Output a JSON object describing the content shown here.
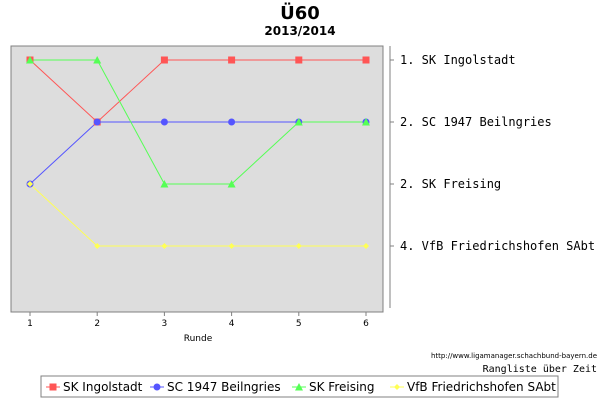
{
  "chart_data": {
    "type": "line",
    "title": "Ü60",
    "subtitle": "2013/2014",
    "xlabel": "Runde",
    "x": [
      1,
      2,
      3,
      4,
      5,
      6
    ],
    "ylim": [
      1,
      5
    ],
    "y_inverted": true,
    "grid": false,
    "legend_position": "bottom",
    "right_axis_labels": [
      "1. SK Ingolstadt",
      "2. SC 1947 Beilngries",
      "2. SK Freising",
      "4. VfB Friedrichshofen SAbt"
    ],
    "right_axis_caption": "Rangliste über Zeit",
    "source_text": "http://www.ligamanager.schachbund-bayern.de",
    "series": [
      {
        "name": "SK Ingolstadt",
        "color": "#ff5555",
        "marker": "square",
        "values": [
          1,
          2,
          1,
          1,
          1,
          1
        ]
      },
      {
        "name": "SC 1947 Beilngries",
        "color": "#5555ff",
        "marker": "circle",
        "values": [
          3,
          2,
          2,
          2,
          2,
          2
        ]
      },
      {
        "name": "SK Freising",
        "color": "#55ff55",
        "marker": "triangle",
        "values": [
          1,
          1,
          3,
          3,
          2,
          2
        ]
      },
      {
        "name": "VfB Friedrichshofen SAbt",
        "color": "#ffff55",
        "marker": "diamond",
        "values": [
          3,
          4,
          4,
          4,
          4,
          4
        ]
      }
    ],
    "plot_background": "#dddddd"
  }
}
